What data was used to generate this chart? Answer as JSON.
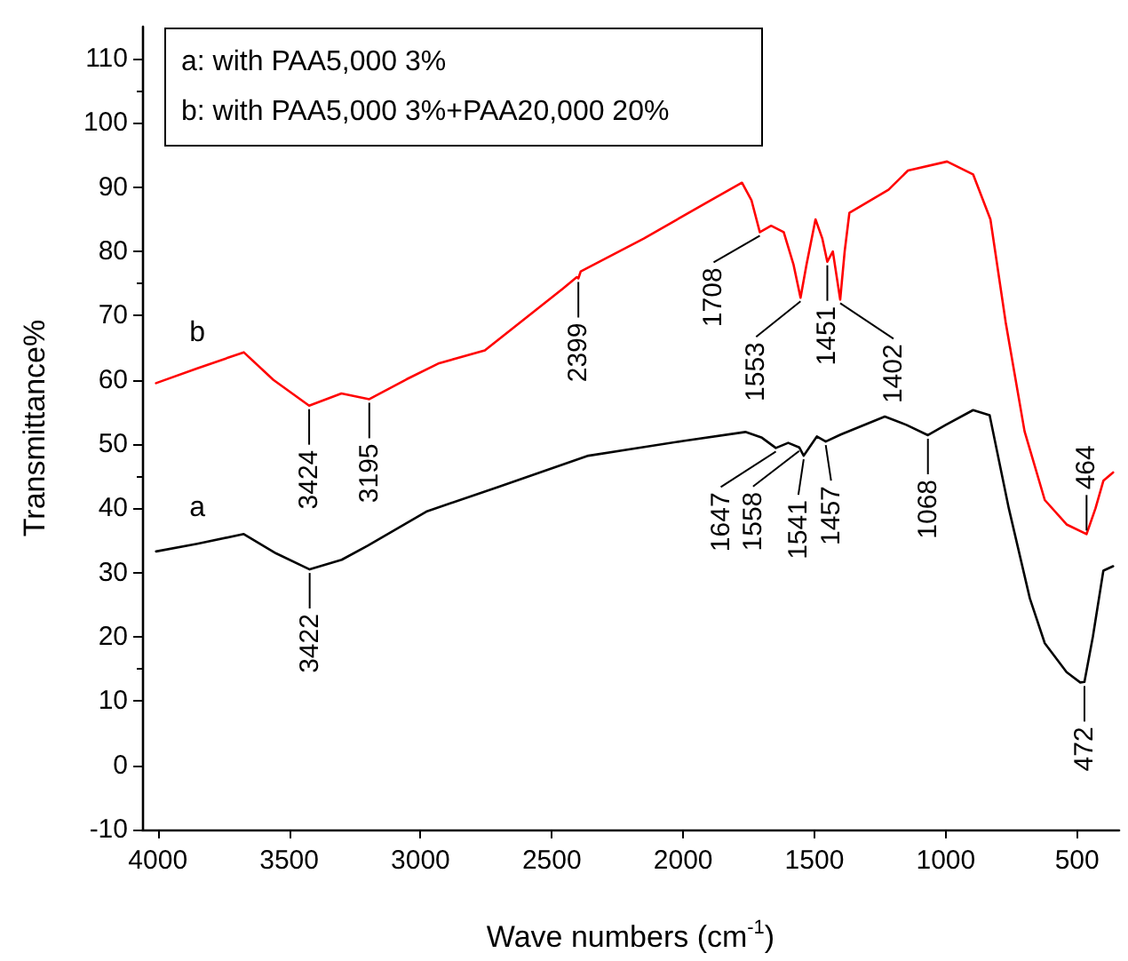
{
  "chart_data": {
    "type": "line",
    "xlabel": "Wave numbers (cm$^{-1}$)",
    "ylabel": "Transmittance%",
    "xlim": [
      4060,
      340
    ],
    "xticks": [
      4000,
      3500,
      3000,
      2500,
      2000,
      1500,
      1000,
      500
    ],
    "ylim": [
      -10,
      115
    ],
    "yticks": [
      -10,
      0,
      10,
      20,
      30,
      40,
      50,
      60,
      70,
      80,
      90,
      100,
      110
    ],
    "grid": false,
    "legend": false,
    "marker": "none",
    "line_style": "solid",
    "series": [
      {
        "name": "a",
        "color": "#000000",
        "x": [
          4007,
          3850,
          3673,
          3550,
          3422,
          3300,
          3201,
          2978,
          2706,
          2361,
          2000,
          1763,
          1700,
          1647,
          1600,
          1558,
          1541,
          1491,
          1457,
          1400,
          1232,
          1150,
          1068,
          1000,
          896,
          833,
          760,
          680,
          623,
          540,
          488,
          472,
          440,
          400,
          363
        ],
        "values": [
          33.3,
          34.5,
          36,
          33,
          30.5,
          32,
          34.2,
          39.5,
          43.3,
          48.2,
          50.5,
          51.9,
          51,
          49.4,
          50.2,
          49.5,
          48.2,
          51.2,
          50.4,
          51.5,
          54.3,
          53,
          51.4,
          53,
          55.3,
          54.5,
          40,
          26,
          19,
          14.5,
          12.9,
          13,
          20,
          30.3,
          31
        ]
      },
      {
        "name": "b",
        "color": "#ff0000",
        "x": [
          4007,
          3850,
          3673,
          3560,
          3424,
          3301,
          3195,
          3053,
          2929,
          2755,
          2458,
          2405,
          2399,
          2390,
          2150,
          1915,
          1776,
          1740,
          1708,
          1665,
          1617,
          1580,
          1553,
          1530,
          1496,
          1470,
          1451,
          1430,
          1402,
          1385,
          1367,
          1218,
          1144,
          995,
          896,
          830,
          772,
          700,
          623,
          540,
          464,
          430,
          400,
          363
        ],
        "values": [
          59.5,
          61.8,
          64.3,
          60,
          56,
          57.9,
          57,
          60.1,
          62.6,
          64.6,
          74.2,
          76,
          75.8,
          76.9,
          82,
          87.5,
          90.7,
          88,
          83,
          84,
          83,
          78,
          72.8,
          78,
          85,
          82,
          78.4,
          80,
          72.5,
          80,
          86,
          89.6,
          92.6,
          94,
          92,
          85,
          69,
          52,
          41.3,
          37.5,
          36,
          40,
          44.3,
          45.6
        ]
      }
    ],
    "annotations": [
      "a: with PAA5,000 3%",
      "b: with PAA5,000 3%+PAA20,000 20%",
      {
        "text": "3424",
        "x": 3424,
        "y": 56
      },
      {
        "text": "3195",
        "x": 3195,
        "y": 57
      },
      {
        "text": "2399",
        "x": 2399,
        "y": 75.8
      },
      {
        "text": "1708",
        "x": 1708,
        "y": 83
      },
      {
        "text": "1553",
        "x": 1553,
        "y": 72.8
      },
      {
        "text": "1451",
        "x": 1451,
        "y": 78.4
      },
      {
        "text": "1402",
        "x": 1402,
        "y": 72.5
      },
      {
        "text": "464",
        "x": 464,
        "y": 36
      },
      {
        "text": "3422",
        "x": 3422,
        "y": 30.5
      },
      {
        "text": "1647",
        "x": 1647,
        "y": 49.4
      },
      {
        "text": "1558",
        "x": 1558,
        "y": 49.5
      },
      {
        "text": "1541",
        "x": 1541,
        "y": 48.2
      },
      {
        "text": "1457",
        "x": 1457,
        "y": 50.4
      },
      {
        "text": "1068",
        "x": 1068,
        "y": 51.4
      },
      {
        "text": "472",
        "x": 472,
        "y": 12.9
      }
    ]
  }
}
